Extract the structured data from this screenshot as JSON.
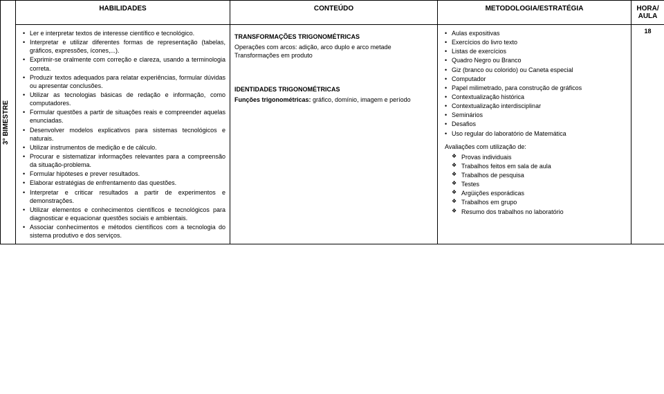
{
  "headers": {
    "habilidades": "HABILIDADES",
    "conteudo": "CONTEÚDO",
    "metodologia": "METODOLOGIA/ESTRATÉGIA",
    "hora": "HORA/ AULA"
  },
  "side_label": "3° BIMESTRE",
  "hora_value": "18",
  "habilidades": [
    "Ler e interpretar textos de interesse científico e tecnológico.",
    "Interpretar e utilizar diferentes formas de representação (tabelas, gráficos, expressões, ícones,...).",
    "Exprimir-se oralmente com correção e clareza, usando a terminologia correta.",
    "Produzir textos adequados para relatar experiências, formular dúvidas ou apresentar conclusões.",
    "Utilizar as tecnologias básicas de redação e informação, como computadores.",
    "Formular questões a partir de situações reais e compreender aquelas enunciadas.",
    "Desenvolver modelos explicativos para sistemas tecnológicos e naturais.",
    "Utilizar instrumentos de medição e de cálculo.",
    "Procurar e sistematizar informações relevantes para a compreensão da situação-problema.",
    "Formular hipóteses e prever resultados.",
    "Elaborar estratégias de enfrentamento das questões.",
    "Interpretar e criticar resultados a partir de experimentos e demonstrações.",
    "Utilizar elementos e conhecimentos científicos e tecnológicos para diagnosticar e equacionar questões sociais e ambientais.",
    "Associar conhecimentos e métodos científicos com a tecnologia do sistema produtivo e dos serviços."
  ],
  "conteudo": {
    "sec1_title": "TRANSFORMAÇÕES TRIGONOMÉTRICAS",
    "sec1_lines": [
      "Operações com arcos: adição, arco duplo e arco metade",
      "Transformações em produto"
    ],
    "sec2_title": "IDENTIDADES TRIGONOMÉTRICAS",
    "sec2_line_prefix": "Funções trigonométricas:",
    "sec2_line_rest": " gráfico, domínio, imagem e período"
  },
  "metodologia": {
    "items": [
      "Aulas expositivas",
      "Exercícios do livro texto",
      "Listas de exercícios",
      "Quadro Negro ou Branco",
      "Giz (branco ou colorido) ou Caneta especial",
      "Computador",
      "Papel milimetrado, para construção de gráficos",
      "Contextualização histórica",
      "Contextualização interdisciplinar",
      "Seminários",
      "Desafios",
      "Uso regular do laboratório de Matemática"
    ],
    "aval_intro": "Avaliações com utilização de:",
    "aval_items": [
      "Provas individuais",
      "Trabalhos feitos em sala de aula",
      "Trabalhos de pesquisa",
      "Testes",
      "Argüições esporádicas",
      "Trabalhos em grupo",
      "Resumo dos trabalhos no laboratório"
    ]
  }
}
